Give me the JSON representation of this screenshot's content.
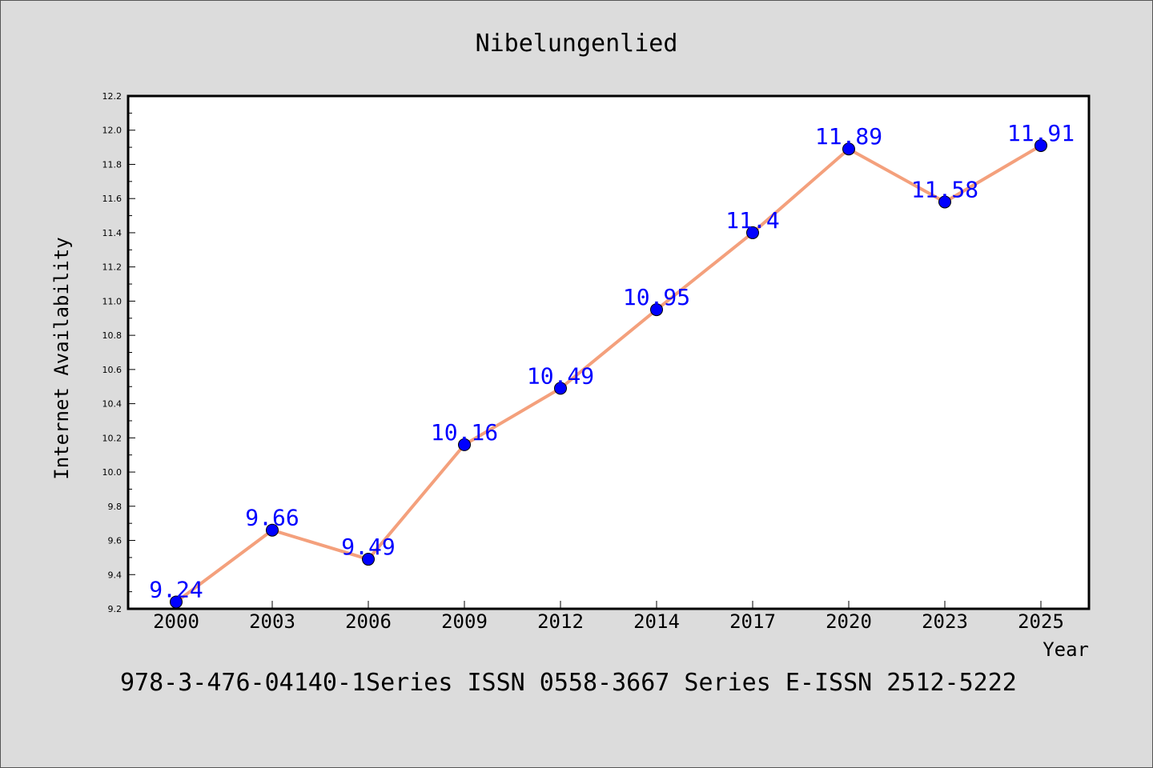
{
  "chart_data": {
    "type": "line",
    "title": "Nibelungenlied",
    "xlabel": "Year",
    "ylabel": "Internet Availability",
    "categories": [
      "2000",
      "2003",
      "2006",
      "2009",
      "2012",
      "2014",
      "2017",
      "2020",
      "2023",
      "2025"
    ],
    "series": [
      {
        "values": [
          9.24,
          9.66,
          9.49,
          10.16,
          10.49,
          10.95,
          11.4,
          11.89,
          11.58,
          11.91
        ],
        "data_labels": [
          "9.24",
          "9.66",
          "9.49",
          "10.16",
          "10.49",
          "10.95",
          "11.4",
          "11.89",
          "11.58",
          "11.91"
        ],
        "line_color": "#f4a07c",
        "marker_color": "#0000ff"
      }
    ],
    "ylim": [
      9.2,
      12.2
    ],
    "yticks": [
      "9.2",
      "9.4",
      "9.6",
      "9.8",
      "10.0",
      "10.2",
      "10.4",
      "10.6",
      "10.8",
      "11.0",
      "11.2",
      "11.4",
      "11.6",
      "11.8",
      "12.0",
      "12.2"
    ],
    "grid": false,
    "legend": false
  },
  "footer": "978-3-476-04140-1Series ISSN 0558-3667 Series E-ISSN 2512-5222",
  "colors": {
    "background": "#dcdcdc",
    "plot_area": "#ffffff",
    "data_label": "#0000ff"
  }
}
